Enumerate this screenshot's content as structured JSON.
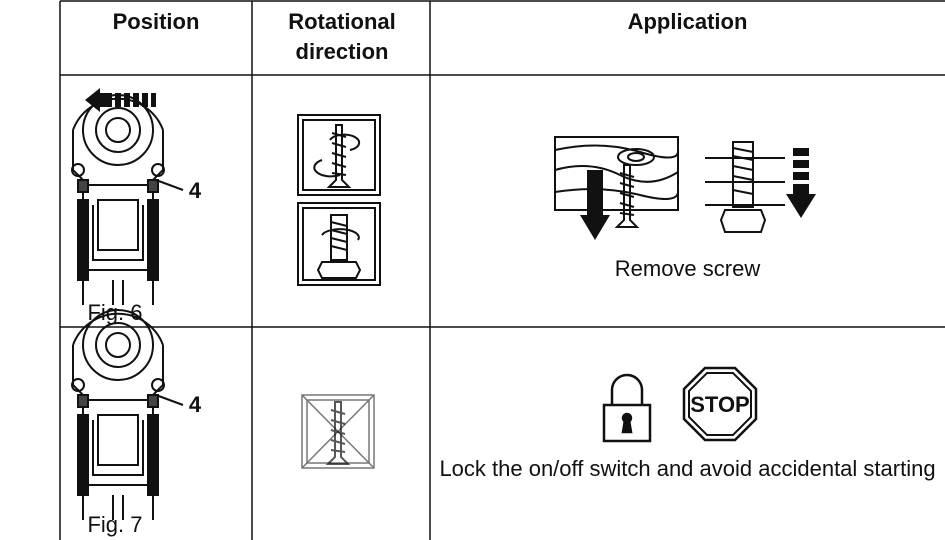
{
  "table": {
    "headers": [
      "Position",
      "Rotational direction",
      "Application"
    ],
    "rows": [
      {
        "callout": "4",
        "figure": "Fig. 6",
        "application": "Remove screw"
      },
      {
        "callout": "4",
        "figure": "Fig. 7",
        "sign": "STOP",
        "application": "Lock the on/off switch and avoid accidental starting"
      }
    ]
  }
}
